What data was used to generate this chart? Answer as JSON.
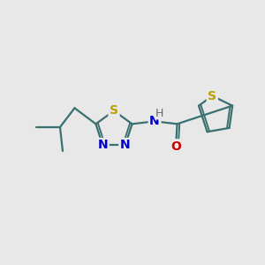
{
  "bg_color": "#e8e8e8",
  "bond_color": "#3a7070",
  "bond_width": 1.6,
  "S_color": "#b8a000",
  "N_color": "#0000cc",
  "O_color": "#cc0000",
  "H_color": "#666666",
  "font_size": 10,
  "figsize": [
    3.0,
    3.0
  ],
  "dpi": 100,
  "xlim": [
    0,
    10
  ],
  "ylim": [
    0,
    10
  ]
}
